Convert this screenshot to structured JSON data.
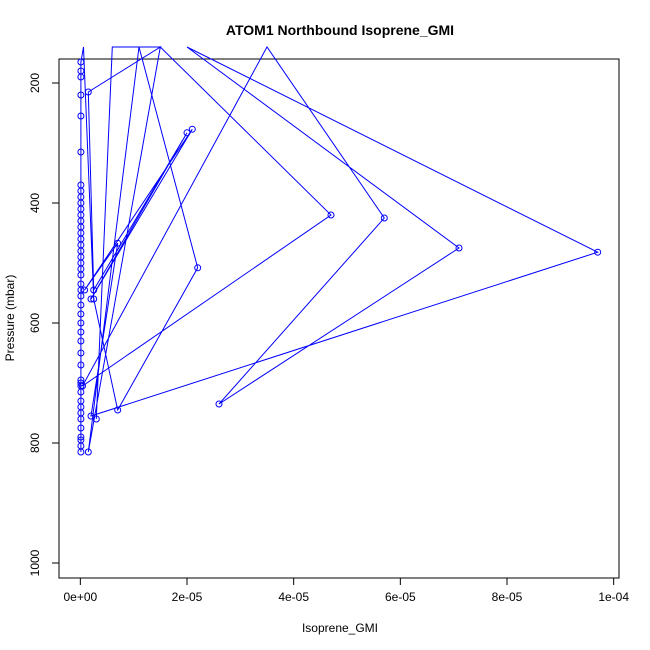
{
  "chart_data": {
    "type": "line",
    "title": "ATOM1 Northbound Isoprene_GMI",
    "xlabel": "Isoprene_GMI",
    "ylabel": "Pressure (mbar)",
    "xlim": [
      -4e-06,
      0.000101
    ],
    "ylim": [
      1025,
      160
    ],
    "y_reversed": true,
    "grid": false,
    "legend": "none",
    "x_ticks": [
      0,
      2e-05,
      4e-05,
      6e-05,
      8e-05,
      0.0001
    ],
    "x_tick_labels": [
      "0e+00",
      "2e-05",
      "4e-05",
      "6e-05",
      "8e-05",
      "1e-04"
    ],
    "y_ticks": [
      200,
      400,
      600,
      800,
      1000
    ],
    "y_tick_labels": [
      "200",
      "400",
      "600",
      "800",
      "1000"
    ],
    "markers": "open-circle",
    "colors": {
      "series": "#0000ff",
      "axis": "#000000"
    },
    "series": [
      {
        "points": [
          [
            1e-07,
            815
          ],
          [
            1e-07,
            805
          ],
          [
            1e-07,
            795
          ],
          [
            1e-07,
            790
          ],
          [
            1e-07,
            775
          ],
          [
            1e-07,
            760
          ],
          [
            1e-07,
            750
          ],
          [
            1e-07,
            740
          ],
          [
            1e-07,
            730
          ],
          [
            1e-07,
            715
          ],
          [
            1e-07,
            705
          ],
          [
            1e-07,
            700
          ],
          [
            1e-07,
            695
          ],
          [
            1e-07,
            670
          ],
          [
            1e-07,
            650
          ],
          [
            1e-07,
            630
          ],
          [
            1e-07,
            615
          ],
          [
            1e-07,
            600
          ],
          [
            1e-07,
            585
          ],
          [
            1e-07,
            570
          ],
          [
            1e-07,
            555
          ],
          [
            1e-07,
            545
          ],
          [
            1e-07,
            535
          ],
          [
            1e-07,
            520
          ],
          [
            1e-07,
            510
          ],
          [
            1e-07,
            500
          ],
          [
            1e-07,
            490
          ],
          [
            1e-07,
            480
          ],
          [
            1e-07,
            470
          ],
          [
            1e-07,
            460
          ],
          [
            1e-07,
            450
          ],
          [
            1e-07,
            440
          ],
          [
            1e-07,
            430
          ],
          [
            1e-07,
            420
          ],
          [
            1e-07,
            410
          ],
          [
            1e-07,
            400
          ],
          [
            1e-07,
            390
          ],
          [
            1e-07,
            380
          ],
          [
            1e-07,
            370
          ],
          [
            1e-07,
            315
          ],
          [
            1e-07,
            255
          ],
          [
            1e-07,
            220
          ],
          [
            1e-07,
            190
          ],
          [
            1e-07,
            180
          ],
          [
            1e-07,
            165
          ],
          [
            6e-07,
            140
          ],
          [
            2.5e-06,
            560
          ],
          [
            7e-06,
            745
          ],
          [
            2.2e-05,
            508
          ],
          [
            1.1e-05,
            140
          ],
          [
            1.5e-06,
            815
          ],
          [
            1.5e-05,
            140
          ],
          [
            4.7e-05,
            420
          ],
          [
            4e-07,
            705
          ],
          [
            3.5e-05,
            140
          ],
          [
            5.7e-05,
            425
          ],
          [
            2.6e-05,
            735
          ],
          [
            7.1e-05,
            475
          ],
          [
            2e-05,
            140
          ],
          [
            9.7e-05,
            482
          ],
          [
            2e-06,
            755
          ],
          [
            7e-06,
            467
          ],
          [
            8e-07,
            545
          ],
          [
            2.1e-05,
            277
          ],
          [
            2e-06,
            560
          ],
          [
            2e-05,
            283
          ],
          [
            2.5e-06,
            545
          ],
          [
            1.5e-06,
            215
          ],
          [
            1.5e-05,
            140
          ],
          [
            6e-06,
            140
          ],
          [
            3e-06,
            760
          ]
        ]
      }
    ]
  }
}
